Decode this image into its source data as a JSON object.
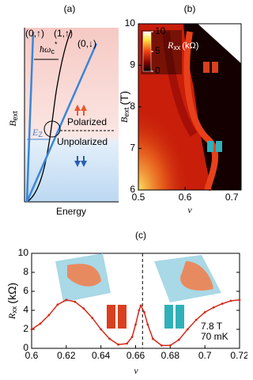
{
  "chart_data": [
    {
      "type": "schematic",
      "panel_label": "(a)",
      "y_label": "B",
      "y_label_sub": "ext",
      "x_label": "Energy",
      "level_labels": [
        "(0,↑)",
        "(1,↑)",
        "(0,↓)"
      ],
      "gap_label": "ħω",
      "gap_sub": "c",
      "gap_sup": "*",
      "zeeman_label": "E",
      "zeeman_sub": "Z",
      "upper_label": "Polarized",
      "lower_label": "Unpolarized"
    },
    {
      "type": "heatmap",
      "panel_label": "(b)",
      "x_label": "ν",
      "y_label": "B",
      "y_label_sub": "ext",
      "y_unit": "(T)",
      "xlim": [
        0.5,
        0.72
      ],
      "xticks": [
        0.5,
        0.6,
        0.7
      ],
      "ylim": [
        6,
        10
      ],
      "yticks": [
        6,
        7,
        8,
        9,
        10
      ],
      "colorbar": {
        "label": "R",
        "label_sub": "xx",
        "unit": "(kΩ)",
        "lim": [
          0,
          10
        ],
        "ticks": [
          0,
          5,
          10
        ]
      }
    },
    {
      "type": "line",
      "panel_label": "(c)",
      "x_label": "ν",
      "y_label": "R",
      "y_label_sub": "xx",
      "y_unit": "(kΩ)",
      "x": [
        0.6,
        0.605,
        0.61,
        0.615,
        0.62,
        0.625,
        0.63,
        0.635,
        0.64,
        0.645,
        0.65,
        0.655,
        0.658,
        0.66,
        0.662,
        0.663,
        0.665,
        0.667,
        0.67,
        0.675,
        0.68,
        0.685,
        0.69,
        0.695,
        0.7,
        0.705,
        0.71,
        0.715,
        0.72
      ],
      "values": [
        2.0,
        2.6,
        3.5,
        4.6,
        5.1,
        4.9,
        4.2,
        3.2,
        2.0,
        1.0,
        0.4,
        0.5,
        1.2,
        2.5,
        4.0,
        4.5,
        3.8,
        2.5,
        1.0,
        0.3,
        0.3,
        0.9,
        2.0,
        3.0,
        3.8,
        4.3,
        4.7,
        5.0,
        5.1
      ],
      "color": "#d42a1a",
      "dashed_x": 0.664,
      "xlim": [
        0.6,
        0.72
      ],
      "xticks": [
        0.6,
        0.62,
        0.64,
        0.66,
        0.68,
        0.7,
        0.72
      ],
      "ylim": [
        0,
        10
      ],
      "yticks": [
        0,
        2,
        4,
        6,
        8,
        10
      ],
      "annotations": [
        "7.8 T",
        "70 mK"
      ]
    }
  ]
}
